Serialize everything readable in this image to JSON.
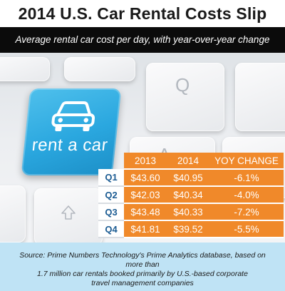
{
  "header": {
    "title": "2014 U.S. Car Rental Costs Slip",
    "subtitle": "Average rental car cost per day, with year-over-year change"
  },
  "key_label": "rent a car",
  "keyboard_letters": [
    "Q",
    "A"
  ],
  "table": {
    "columns": [
      "2013",
      "2014",
      "YOY CHANGE"
    ],
    "rows": [
      {
        "quarter": "Q1",
        "y2013": "$43.60",
        "y2014": "$40.95",
        "yoy": "-6.1%"
      },
      {
        "quarter": "Q2",
        "y2013": "$42.03",
        "y2014": "$40.34",
        "yoy": "-4.0%"
      },
      {
        "quarter": "Q3",
        "y2013": "$43.48",
        "y2014": "$40.33",
        "yoy": "-7.2%"
      },
      {
        "quarter": "Q4",
        "y2013": "$41.81",
        "y2014": "$39.52",
        "yoy": "-5.5%"
      }
    ]
  },
  "source": {
    "line1": "Source: Prime Numbers Technology's Prime Analytics database, based on more than",
    "line2": "1.7 million car rentals booked primarily by U.S.-based corporate",
    "line3": "travel management companies"
  },
  "colors": {
    "accent_orange": "#f0892a",
    "key_blue": "#2aa7df",
    "quarter_blue": "#1c5c93",
    "source_band": "#bfe3f5",
    "subtitle_bar": "#0b0b0b"
  },
  "icons": [
    "car-icon",
    "up-arrow-icon"
  ]
}
